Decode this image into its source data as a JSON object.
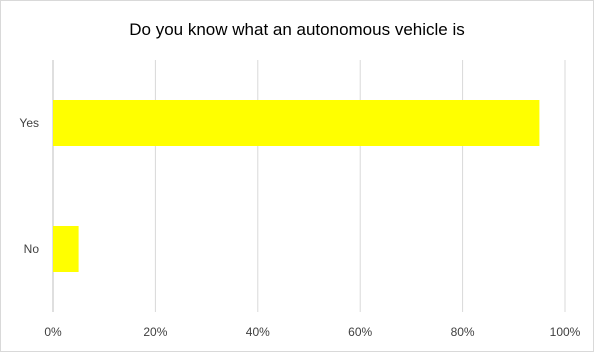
{
  "chart_data": {
    "type": "bar",
    "orientation": "horizontal",
    "title": "Do you know what an autonomous vehicle is",
    "categories": [
      "Yes",
      "No"
    ],
    "values": [
      95,
      5
    ],
    "xlabel": "",
    "ylabel": "",
    "xlim": [
      0,
      100
    ],
    "x_ticks": [
      0,
      20,
      40,
      60,
      80,
      100
    ],
    "x_tick_labels": [
      "0%",
      "20%",
      "40%",
      "60%",
      "80%",
      "100%"
    ],
    "grid": "vertical",
    "legend": "none",
    "bar_color": "#ffff00",
    "gridline_color": "#d9d9d9"
  }
}
